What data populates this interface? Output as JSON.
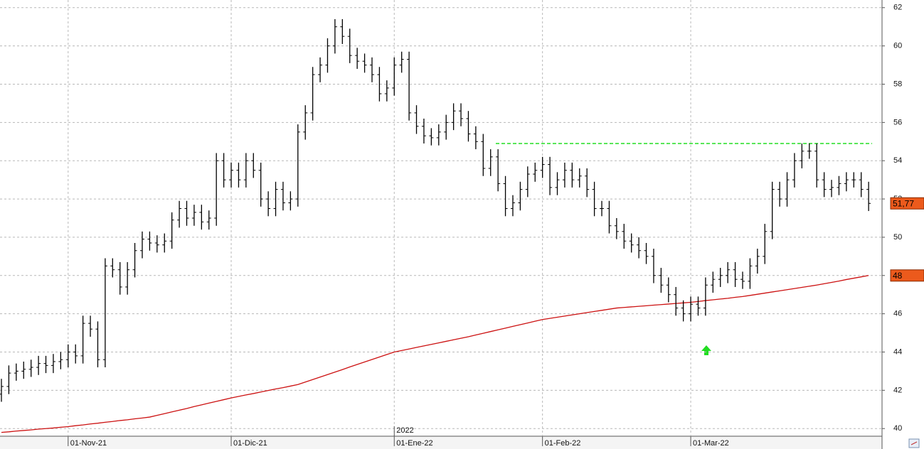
{
  "chart_data": {
    "type": "ohlc",
    "categories": [
      null,
      null,
      null,
      null,
      null,
      null,
      null,
      null,
      null,
      "01-Nov-21",
      null,
      null,
      null,
      null,
      null,
      null,
      null,
      null,
      null,
      null,
      null,
      null,
      null,
      null,
      null,
      null,
      null,
      null,
      null,
      null,
      null,
      "01-Dic-21",
      null,
      null,
      null,
      null,
      null,
      null,
      null,
      null,
      null,
      null,
      null,
      null,
      null,
      null,
      null,
      null,
      null,
      null,
      null,
      null,
      null,
      "01-Ene-22",
      null,
      null,
      null,
      null,
      null,
      null,
      null,
      null,
      null,
      null,
      null,
      null,
      null,
      null,
      null,
      null,
      null,
      null,
      null,
      "01-Feb-22",
      null,
      null,
      null,
      null,
      null,
      null,
      null,
      null,
      null,
      null,
      null,
      null,
      null,
      null,
      null,
      null,
      null,
      null,
      null,
      "01-Mar-22",
      null,
      null,
      null,
      null,
      null,
      null,
      null,
      null,
      null,
      null,
      null,
      null,
      null,
      null,
      null,
      null,
      null,
      null,
      null,
      null,
      null,
      null,
      null,
      null
    ],
    "open": [
      41.8,
      42.2,
      42.9,
      43.0,
      43.1,
      43.2,
      43.4,
      43.3,
      43.5,
      43.6,
      44.0,
      43.8,
      45.5,
      45.2,
      43.6,
      48.5,
      48.3,
      47.4,
      48.3,
      49.3,
      49.9,
      49.7,
      49.6,
      49.8,
      50.9,
      51.5,
      51.0,
      51.3,
      50.8,
      51.0,
      54.0,
      53.0,
      53.5,
      53.0,
      54.0,
      53.5,
      52.0,
      51.5,
      52.5,
      51.8,
      52.0,
      55.5,
      56.5,
      58.5,
      59.0,
      60.0,
      61.0,
      60.5,
      59.5,
      59.2,
      59.0,
      58.5,
      57.5,
      57.8,
      59.0,
      59.3,
      56.5,
      55.8,
      55.3,
      55.2,
      55.5,
      56.0,
      56.6,
      56.2,
      55.4,
      55.0,
      53.6,
      54.2,
      52.8,
      51.5,
      51.8,
      52.5,
      53.3,
      53.5,
      53.8,
      52.6,
      53.0,
      53.5,
      53.0,
      53.2,
      52.5,
      51.5,
      51.5,
      50.6,
      50.3,
      49.8,
      49.6,
      49.3,
      49.0,
      48.0,
      47.5,
      47.0,
      46.3,
      46.0,
      46.5,
      46.3,
      47.5,
      47.8,
      48.0,
      48.3,
      47.8,
      47.7,
      48.5,
      49.0,
      50.3,
      52.5,
      52.0,
      53.0,
      54.0,
      54.5,
      54.5,
      53.0,
      52.5,
      52.6,
      52.8,
      53.0,
      53.0,
      52.5
    ],
    "high": [
      42.6,
      43.3,
      43.4,
      43.5,
      43.6,
      43.8,
      43.8,
      43.9,
      44.0,
      44.4,
      44.4,
      45.9,
      45.9,
      45.6,
      48.9,
      48.9,
      48.7,
      48.7,
      49.7,
      50.3,
      50.3,
      50.1,
      50.2,
      51.3,
      51.9,
      51.9,
      51.7,
      51.7,
      51.4,
      54.4,
      54.4,
      53.9,
      53.9,
      54.4,
      54.4,
      53.9,
      52.4,
      52.9,
      52.9,
      52.4,
      55.9,
      56.9,
      58.9,
      59.4,
      60.4,
      61.4,
      61.4,
      60.9,
      59.9,
      59.6,
      59.4,
      58.9,
      58.2,
      59.4,
      59.7,
      59.7,
      56.9,
      56.2,
      55.7,
      55.9,
      56.4,
      57.0,
      57.0,
      56.6,
      55.8,
      55.4,
      54.6,
      54.6,
      53.2,
      52.2,
      52.9,
      53.7,
      53.9,
      54.2,
      54.2,
      53.4,
      53.9,
      53.9,
      53.6,
      53.6,
      52.9,
      51.9,
      51.9,
      51.0,
      50.7,
      50.2,
      50.0,
      49.7,
      49.4,
      48.4,
      47.9,
      47.4,
      46.7,
      46.9,
      46.9,
      47.9,
      48.2,
      48.4,
      48.7,
      48.7,
      48.2,
      48.9,
      49.4,
      50.7,
      52.9,
      52.9,
      53.4,
      54.4,
      54.9,
      54.9,
      54.9,
      53.4,
      53.0,
      53.2,
      53.4,
      53.4,
      53.4,
      52.9
    ],
    "low": [
      41.4,
      41.8,
      42.5,
      42.6,
      42.7,
      42.8,
      42.9,
      42.9,
      43.1,
      43.2,
      43.4,
      43.4,
      44.8,
      43.2,
      43.2,
      47.9,
      47.0,
      47.0,
      47.9,
      48.9,
      49.3,
      49.2,
      49.2,
      49.4,
      50.5,
      50.6,
      50.6,
      50.4,
      50.4,
      50.6,
      52.6,
      52.6,
      52.6,
      52.6,
      53.1,
      51.6,
      51.1,
      51.1,
      51.4,
      51.4,
      51.6,
      55.1,
      56.1,
      58.1,
      58.6,
      59.6,
      60.1,
      59.1,
      58.8,
      58.6,
      58.1,
      57.1,
      57.1,
      57.4,
      58.6,
      56.1,
      55.4,
      54.9,
      54.8,
      54.8,
      55.1,
      55.6,
      55.8,
      55.0,
      54.6,
      53.2,
      53.2,
      52.4,
      51.1,
      51.1,
      51.4,
      52.1,
      52.9,
      53.1,
      52.2,
      52.2,
      52.6,
      52.6,
      52.6,
      52.1,
      51.1,
      51.1,
      50.2,
      49.9,
      49.4,
      49.2,
      48.9,
      48.6,
      47.6,
      47.1,
      46.6,
      45.9,
      45.6,
      45.6,
      45.9,
      45.9,
      47.1,
      47.4,
      47.6,
      47.4,
      47.3,
      47.3,
      48.1,
      48.6,
      49.9,
      51.6,
      51.6,
      52.6,
      53.6,
      54.1,
      52.6,
      52.1,
      52.1,
      52.2,
      52.4,
      52.6,
      52.1,
      51.37
    ],
    "close": [
      42.2,
      42.9,
      43.0,
      43.1,
      43.2,
      43.4,
      43.3,
      43.5,
      43.6,
      44.0,
      43.8,
      45.5,
      45.2,
      43.6,
      48.5,
      48.3,
      47.4,
      48.3,
      49.3,
      49.9,
      49.7,
      49.6,
      49.8,
      50.9,
      51.5,
      51.0,
      51.3,
      50.8,
      51.0,
      54.0,
      53.0,
      53.5,
      53.0,
      54.0,
      53.5,
      52.0,
      51.5,
      52.5,
      51.8,
      52.0,
      55.5,
      56.5,
      58.5,
      59.0,
      60.0,
      61.0,
      60.5,
      59.5,
      59.2,
      59.0,
      58.5,
      57.5,
      57.8,
      59.0,
      59.3,
      56.5,
      55.8,
      55.3,
      55.2,
      55.5,
      56.0,
      56.6,
      56.2,
      55.4,
      55.0,
      53.6,
      54.2,
      52.8,
      51.5,
      51.8,
      52.5,
      53.3,
      53.5,
      53.8,
      52.6,
      53.0,
      53.5,
      53.0,
      53.2,
      52.5,
      51.5,
      51.5,
      50.6,
      50.3,
      49.8,
      49.6,
      49.3,
      49.0,
      48.0,
      47.5,
      47.0,
      46.3,
      46.0,
      46.5,
      46.3,
      47.5,
      47.8,
      48.0,
      48.3,
      47.8,
      47.7,
      48.5,
      49.0,
      50.3,
      52.5,
      52.0,
      53.0,
      54.0,
      54.5,
      54.5,
      53.0,
      52.5,
      52.6,
      52.8,
      53.0,
      53.0,
      52.5,
      51.77
    ],
    "color": "#000000",
    "last_value_label": "51,77",
    "label_color": "#ec5a1c",
    "moving_average": {
      "color": "#cc1111",
      "last_value_label": "48",
      "values": [
        39.8,
        39.83,
        39.87,
        39.9,
        39.93,
        39.97,
        40.0,
        40.03,
        40.07,
        40.1,
        40.15,
        40.19,
        40.24,
        40.28,
        40.33,
        40.37,
        40.42,
        40.46,
        40.51,
        40.55,
        40.6,
        40.69,
        40.78,
        40.87,
        40.96,
        41.05,
        41.15,
        41.24,
        41.33,
        41.42,
        41.51,
        41.6,
        41.68,
        41.76,
        41.83,
        41.91,
        41.99,
        42.07,
        42.14,
        42.22,
        42.3,
        42.43,
        42.56,
        42.69,
        42.82,
        42.95,
        43.08,
        43.22,
        43.35,
        43.48,
        43.61,
        43.74,
        43.87,
        44.0,
        44.08,
        44.16,
        44.24,
        44.32,
        44.4,
        44.48,
        44.56,
        44.64,
        44.72,
        44.8,
        44.89,
        44.98,
        45.07,
        45.16,
        45.25,
        45.34,
        45.43,
        45.52,
        45.61,
        45.7,
        45.76,
        45.82,
        45.88,
        45.94,
        46.0,
        46.06,
        46.12,
        46.18,
        46.24,
        46.3,
        46.33,
        46.36,
        46.39,
        46.42,
        46.45,
        46.48,
        46.51,
        46.54,
        46.57,
        46.6,
        46.64,
        46.69,
        46.73,
        46.77,
        46.81,
        46.86,
        46.9,
        46.96,
        47.02,
        47.08,
        47.14,
        47.2,
        47.26,
        47.32,
        47.38,
        47.44,
        47.5,
        47.57,
        47.64,
        47.71,
        47.79,
        47.86,
        47.93,
        48.0
      ]
    },
    "level_line": {
      "value": 54.9,
      "color": "#22dd22"
    },
    "year_annotation": "2022",
    "ylim": [
      39.6,
      62.4
    ],
    "yticks": [
      40,
      42,
      44,
      46,
      48,
      50,
      52,
      54,
      56,
      58,
      60,
      62
    ],
    "grid": true
  }
}
